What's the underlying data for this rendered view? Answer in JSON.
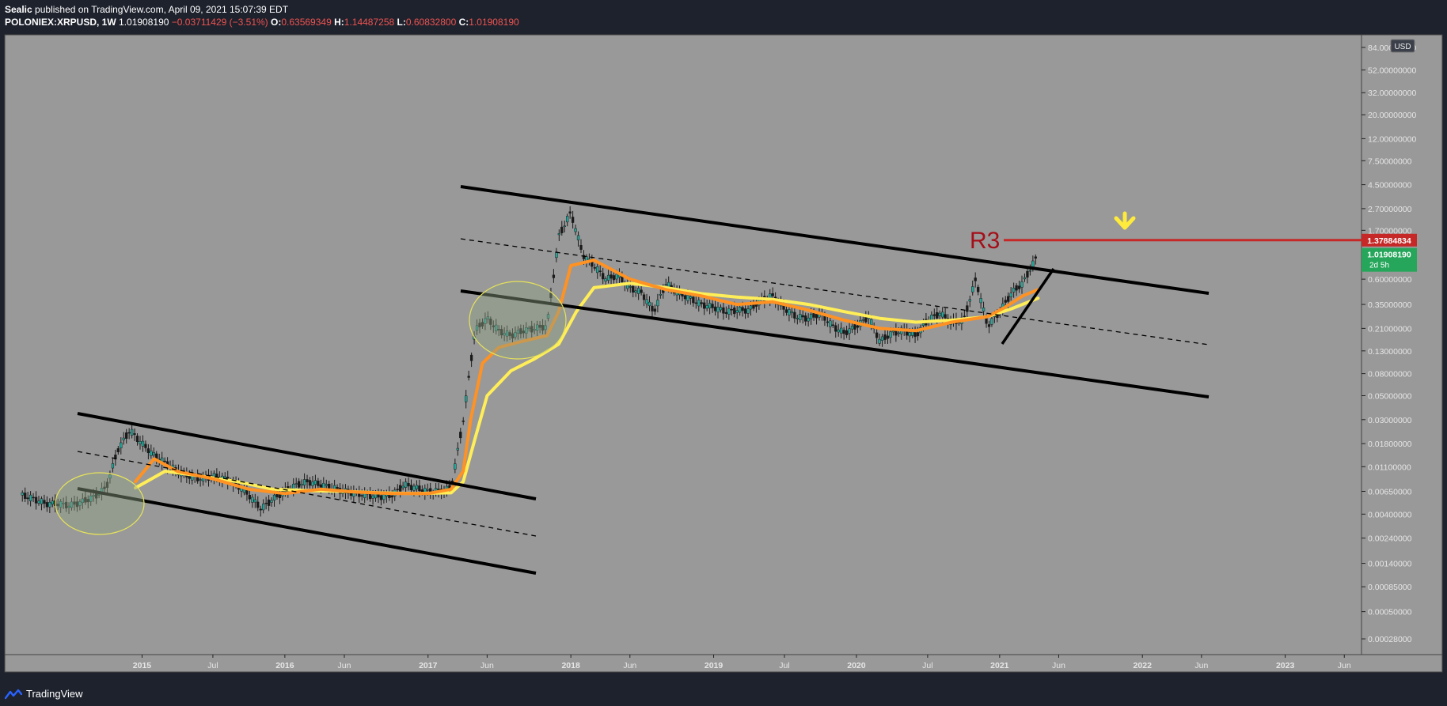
{
  "header": {
    "author": "Sealic",
    "published_text": "published on TradingView.com, April 09, 2021 15:07:39 EDT",
    "symbol": "POLONIEX:XRPUSD, 1W",
    "last": "1.01908190",
    "change": "−0.03711429 (−3.51%)",
    "o_label": "O:",
    "o": "0.63569349",
    "h_label": "H:",
    "h": "1.14487258",
    "l_label": "L:",
    "l": "0.60832800",
    "c_label": "C:",
    "c": "1.01908190"
  },
  "footer": {
    "brand": "TradingView",
    "logo_icon": "tradingview-logo-icon"
  },
  "currency_badge": "USD",
  "price_labels": {
    "r3_price": "1.37884834",
    "last_price": "1.01908190",
    "countdown": "2d 5h"
  },
  "annotations": {
    "r3_label": "R3",
    "arrow_icon": "down-arrow-icon"
  },
  "colors": {
    "plot_bg": "#999999",
    "axis_bg": "#1e222d",
    "up_candle": "#26a69a",
    "candle_dark": "#1a1a1a",
    "ema_fast": "#ff9222",
    "ema_slow": "#ffee58",
    "r3_line": "#c62828",
    "arrow": "#ffeb3b",
    "last_label": "#26a65b"
  },
  "chart_data": {
    "type": "line",
    "instrument": "POLONIEX:XRPUSD",
    "interval": "1W",
    "y_scale": "log",
    "y_ticks": [
      "84.00000000",
      "52.00000000",
      "32.00000000",
      "20.00000000",
      "12.00000000",
      "7.50000000",
      "4.50000000",
      "2.70000000",
      "1.70000000",
      "0.60000000",
      "0.35000000",
      "0.21000000",
      "0.13000000",
      "0.08000000",
      "0.05000000",
      "0.03000000",
      "0.01800000",
      "0.01100000",
      "0.00650000",
      "0.00400000",
      "0.00240000",
      "0.00140000",
      "0.00085000",
      "0.00050000",
      "0.00028000"
    ],
    "x_ticks": [
      {
        "date": "2015-01-01",
        "label": "2015",
        "bold": true
      },
      {
        "date": "2015-07-01",
        "label": "Jul",
        "bold": false
      },
      {
        "date": "2016-01-01",
        "label": "2016",
        "bold": true
      },
      {
        "date": "2016-06-01",
        "label": "Jun",
        "bold": false
      },
      {
        "date": "2017-01-01",
        "label": "2017",
        "bold": true
      },
      {
        "date": "2017-06-01",
        "label": "Jun",
        "bold": false
      },
      {
        "date": "2018-01-01",
        "label": "2018",
        "bold": true
      },
      {
        "date": "2018-06-01",
        "label": "Jun",
        "bold": false
      },
      {
        "date": "2019-01-01",
        "label": "2019",
        "bold": true
      },
      {
        "date": "2019-07-01",
        "label": "Jul",
        "bold": false
      },
      {
        "date": "2020-01-01",
        "label": "2020",
        "bold": true
      },
      {
        "date": "2020-07-01",
        "label": "Jul",
        "bold": false
      },
      {
        "date": "2021-01-01",
        "label": "2021",
        "bold": true
      },
      {
        "date": "2021-06-01",
        "label": "Jun",
        "bold": false
      },
      {
        "date": "2022-01-01",
        "label": "2022",
        "bold": true
      },
      {
        "date": "2022-06-01",
        "label": "Jun",
        "bold": false
      },
      {
        "date": "2023-01-01",
        "label": "2023",
        "bold": true
      },
      {
        "date": "2023-06-01",
        "label": "Jun",
        "bold": false
      }
    ],
    "xlim": [
      "2014-01-15",
      "2023-07-15"
    ],
    "ylim": [
      0.0002,
      110
    ],
    "price_series": {
      "name": "XRPUSD",
      "points": [
        [
          "2014-03-01",
          0.006
        ],
        [
          "2014-04-01",
          0.0055
        ],
        [
          "2014-05-01",
          0.005
        ],
        [
          "2014-06-01",
          0.005
        ],
        [
          "2014-07-01",
          0.0048
        ],
        [
          "2014-08-01",
          0.0052
        ],
        [
          "2014-09-01",
          0.0058
        ],
        [
          "2014-10-01",
          0.007
        ],
        [
          "2014-11-01",
          0.016
        ],
        [
          "2014-12-01",
          0.024
        ],
        [
          "2015-01-01",
          0.018
        ],
        [
          "2015-02-01",
          0.014
        ],
        [
          "2015-03-01",
          0.012
        ],
        [
          "2015-04-01",
          0.01
        ],
        [
          "2015-05-01",
          0.009
        ],
        [
          "2015-06-01",
          0.0085
        ],
        [
          "2015-07-01",
          0.009
        ],
        [
          "2015-08-01",
          0.0085
        ],
        [
          "2015-09-01",
          0.0075
        ],
        [
          "2015-10-01",
          0.006
        ],
        [
          "2015-11-01",
          0.0045
        ],
        [
          "2015-12-01",
          0.0055
        ],
        [
          "2016-01-01",
          0.0065
        ],
        [
          "2016-02-01",
          0.0075
        ],
        [
          "2016-03-01",
          0.008
        ],
        [
          "2016-04-01",
          0.0075
        ],
        [
          "2016-05-01",
          0.007
        ],
        [
          "2016-06-01",
          0.0065
        ],
        [
          "2016-07-01",
          0.0062
        ],
        [
          "2016-08-01",
          0.006
        ],
        [
          "2016-09-01",
          0.0058
        ],
        [
          "2016-10-01",
          0.006
        ],
        [
          "2016-11-01",
          0.0075
        ],
        [
          "2016-12-01",
          0.007
        ],
        [
          "2017-01-01",
          0.0065
        ],
        [
          "2017-02-01",
          0.0065
        ],
        [
          "2017-03-01",
          0.007
        ],
        [
          "2017-04-01",
          0.03
        ],
        [
          "2017-05-01",
          0.2
        ],
        [
          "2017-06-01",
          0.26
        ],
        [
          "2017-07-01",
          0.2
        ],
        [
          "2017-08-01",
          0.18
        ],
        [
          "2017-09-01",
          0.2
        ],
        [
          "2017-10-01",
          0.21
        ],
        [
          "2017-11-01",
          0.22
        ],
        [
          "2017-12-01",
          1.5
        ],
        [
          "2018-01-01",
          2.5
        ],
        [
          "2018-02-01",
          1.0
        ],
        [
          "2018-03-01",
          0.8
        ],
        [
          "2018-04-01",
          0.6
        ],
        [
          "2018-05-01",
          0.65
        ],
        [
          "2018-06-01",
          0.5
        ],
        [
          "2018-07-01",
          0.45
        ],
        [
          "2018-08-01",
          0.3
        ],
        [
          "2018-09-01",
          0.55
        ],
        [
          "2018-10-01",
          0.45
        ],
        [
          "2018-11-01",
          0.4
        ],
        [
          "2018-12-01",
          0.35
        ],
        [
          "2019-01-01",
          0.33
        ],
        [
          "2019-02-01",
          0.3
        ],
        [
          "2019-03-01",
          0.31
        ],
        [
          "2019-04-01",
          0.31
        ],
        [
          "2019-05-01",
          0.38
        ],
        [
          "2019-06-01",
          0.42
        ],
        [
          "2019-07-01",
          0.32
        ],
        [
          "2019-08-01",
          0.27
        ],
        [
          "2019-09-01",
          0.26
        ],
        [
          "2019-10-01",
          0.29
        ],
        [
          "2019-11-01",
          0.22
        ],
        [
          "2019-12-01",
          0.19
        ],
        [
          "2020-01-01",
          0.22
        ],
        [
          "2020-02-01",
          0.27
        ],
        [
          "2020-03-01",
          0.16
        ],
        [
          "2020-04-01",
          0.19
        ],
        [
          "2020-05-01",
          0.2
        ],
        [
          "2020-06-01",
          0.18
        ],
        [
          "2020-07-01",
          0.25
        ],
        [
          "2020-08-01",
          0.29
        ],
        [
          "2020-09-01",
          0.24
        ],
        [
          "2020-10-01",
          0.25
        ],
        [
          "2020-11-01",
          0.6
        ],
        [
          "2020-12-01",
          0.22
        ],
        [
          "2021-01-01",
          0.3
        ],
        [
          "2021-02-01",
          0.45
        ],
        [
          "2021-03-01",
          0.55
        ],
        [
          "2021-04-09",
          1.0190819
        ]
      ]
    },
    "ema_fast": {
      "name": "EMA fast",
      "points": [
        [
          "2014-12-15",
          0.008
        ],
        [
          "2015-02-01",
          0.013
        ],
        [
          "2015-04-01",
          0.01
        ],
        [
          "2015-07-01",
          0.0085
        ],
        [
          "2015-10-01",
          0.0068
        ],
        [
          "2016-01-01",
          0.0062
        ],
        [
          "2016-04-01",
          0.0068
        ],
        [
          "2016-07-01",
          0.0064
        ],
        [
          "2016-10-01",
          0.0062
        ],
        [
          "2017-01-01",
          0.0062
        ],
        [
          "2017-03-01",
          0.0068
        ],
        [
          "2017-04-01",
          0.01
        ],
        [
          "2017-04-20",
          0.03
        ],
        [
          "2017-05-20",
          0.1
        ],
        [
          "2017-07-01",
          0.14
        ],
        [
          "2017-09-01",
          0.16
        ],
        [
          "2017-11-01",
          0.18
        ],
        [
          "2017-12-01",
          0.3
        ],
        [
          "2018-01-01",
          0.8
        ],
        [
          "2018-03-01",
          0.9
        ],
        [
          "2018-06-01",
          0.6
        ],
        [
          "2018-09-01",
          0.48
        ],
        [
          "2018-12-01",
          0.42
        ],
        [
          "2019-03-01",
          0.35
        ],
        [
          "2019-06-01",
          0.37
        ],
        [
          "2019-09-01",
          0.31
        ],
        [
          "2019-12-01",
          0.25
        ],
        [
          "2020-03-01",
          0.21
        ],
        [
          "2020-06-01",
          0.2
        ],
        [
          "2020-09-01",
          0.24
        ],
        [
          "2020-12-01",
          0.27
        ],
        [
          "2021-01-15",
          0.33
        ],
        [
          "2021-03-01",
          0.42
        ],
        [
          "2021-04-09",
          0.48
        ]
      ]
    },
    "ema_slow": {
      "name": "EMA slow",
      "points": [
        [
          "2014-12-15",
          0.007
        ],
        [
          "2015-03-01",
          0.01
        ],
        [
          "2015-06-01",
          0.009
        ],
        [
          "2015-09-01",
          0.008
        ],
        [
          "2015-12-01",
          0.0068
        ],
        [
          "2016-03-01",
          0.0066
        ],
        [
          "2016-06-01",
          0.0065
        ],
        [
          "2016-09-01",
          0.0063
        ],
        [
          "2016-12-01",
          0.0062
        ],
        [
          "2017-03-01",
          0.0063
        ],
        [
          "2017-04-01",
          0.008
        ],
        [
          "2017-05-01",
          0.02
        ],
        [
          "2017-06-01",
          0.05
        ],
        [
          "2017-08-01",
          0.085
        ],
        [
          "2017-10-01",
          0.11
        ],
        [
          "2017-12-01",
          0.15
        ],
        [
          "2018-01-15",
          0.3
        ],
        [
          "2018-03-01",
          0.5
        ],
        [
          "2018-06-01",
          0.55
        ],
        [
          "2018-09-01",
          0.5
        ],
        [
          "2018-12-01",
          0.44
        ],
        [
          "2019-03-01",
          0.41
        ],
        [
          "2019-06-01",
          0.39
        ],
        [
          "2019-09-01",
          0.35
        ],
        [
          "2019-12-01",
          0.3
        ],
        [
          "2020-03-01",
          0.26
        ],
        [
          "2020-06-01",
          0.24
        ],
        [
          "2020-09-01",
          0.25
        ],
        [
          "2020-12-01",
          0.27
        ],
        [
          "2021-02-01",
          0.32
        ],
        [
          "2021-04-09",
          0.4
        ]
      ]
    },
    "r3_level": 1.37884834
  }
}
